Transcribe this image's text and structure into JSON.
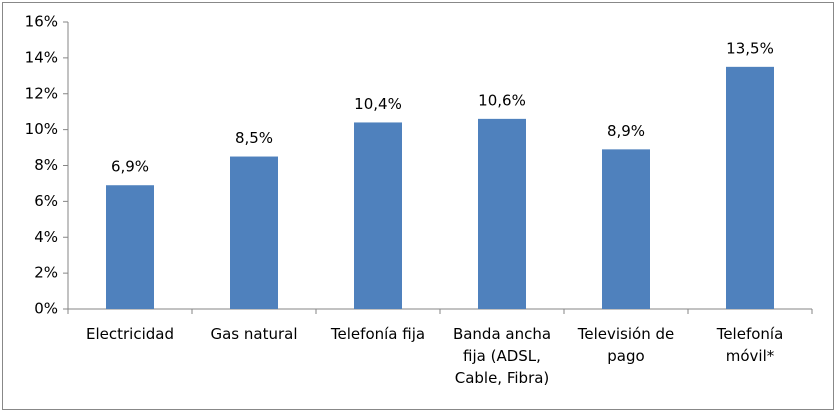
{
  "chart_data": {
    "type": "bar",
    "categories": [
      "Electricidad",
      "Gas natural",
      "Telefonía fija",
      "Banda ancha fija (ADSL, Cable, Fibra)",
      "Televisión de pago",
      "Telefonía móvil*"
    ],
    "values": [
      6.9,
      8.5,
      10.4,
      10.6,
      8.9,
      13.5
    ],
    "value_labels": [
      "6,9%",
      "8,5%",
      "10,4%",
      "10,6%",
      "8,9%",
      "13,5%"
    ],
    "color": "#4f81bd",
    "ylim": [
      0,
      16
    ],
    "yticks": [
      {
        "value": 0,
        "label": "0%"
      },
      {
        "value": 2,
        "label": "2%"
      },
      {
        "value": 4,
        "label": "4%"
      },
      {
        "value": 6,
        "label": "6%"
      },
      {
        "value": 8,
        "label": "8%"
      },
      {
        "value": 10,
        "label": "10%"
      },
      {
        "value": 12,
        "label": "12%"
      },
      {
        "value": 14,
        "label": "14%"
      },
      {
        "value": 16,
        "label": "16%"
      }
    ],
    "grid": false
  }
}
